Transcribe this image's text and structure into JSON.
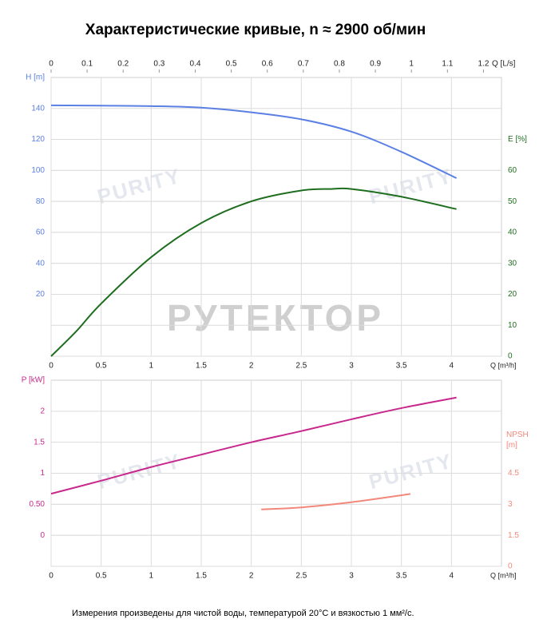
{
  "title": "Характеристические кривые, n ≈ 2900 об/мин",
  "footnote": "Измерения произведены для чистой воды, температурой 20°C и вязкостью 1 мм²/с.",
  "watermarks": [
    "PURITY",
    "РУТЕКТОР"
  ],
  "chart_data": [
    {
      "type": "line",
      "grid": true,
      "x_label": "Q [m³/h]",
      "xlim": [
        0,
        4.5
      ],
      "xticks": [
        0,
        0.5,
        1,
        1.5,
        2,
        2.5,
        3,
        3.5,
        4
      ],
      "x2_label": "Q [L/s]",
      "x2lim": [
        0,
        1.25
      ],
      "x2ticks": [
        0,
        0.1,
        0.2,
        0.3,
        0.4,
        0.5,
        0.6,
        0.7,
        0.8,
        0.9,
        1,
        1.1,
        1.2
      ],
      "y_label": "H [m]",
      "ylim": [
        -20,
        160
      ],
      "yticks": [
        20,
        40,
        60,
        80,
        100,
        120,
        140
      ],
      "y2_label": "E [%]",
      "y2lim": [
        0,
        90
      ],
      "y2ticks": [
        0,
        10,
        20,
        30,
        40,
        50,
        60
      ],
      "series": [
        {
          "name": "H",
          "color": "#5b80e4",
          "axis": "y",
          "x": [
            0,
            0.5,
            1,
            1.5,
            2,
            2.5,
            3,
            3.5,
            4.05
          ],
          "values": [
            142,
            141.8,
            141.5,
            140.5,
            137.5,
            133,
            125,
            112,
            95
          ]
        },
        {
          "name": "E",
          "color": "#1f6e1f",
          "axis": "y2",
          "x": [
            0,
            0.25,
            0.5,
            1,
            1.5,
            2,
            2.5,
            2.8,
            3,
            3.5,
            4.05
          ],
          "values": [
            0,
            8,
            17,
            32,
            43,
            50,
            53.5,
            54,
            54,
            51.5,
            47.5
          ]
        }
      ]
    },
    {
      "type": "line",
      "grid": true,
      "x_label": "Q [m³/h]",
      "xlim": [
        0,
        4.5
      ],
      "xticks": [
        0,
        0.5,
        1,
        1.5,
        2,
        2.5,
        3,
        3.5,
        4
      ],
      "y_label": "P [kW]",
      "ylim": [
        -0.5,
        2.5
      ],
      "yticks": [
        0,
        {
          "value": 0.5,
          "label": "0.50"
        },
        1,
        1.5,
        2
      ],
      "y2_label": "NPSH [m]",
      "y2lim": [
        0,
        9
      ],
      "y2ticks": [
        0,
        1.5,
        3,
        4.5
      ],
      "series": [
        {
          "name": "P",
          "color": "#c8288c",
          "axis": "y",
          "x": [
            0,
            0.5,
            1,
            1.5,
            2,
            2.5,
            3,
            3.5,
            4.05
          ],
          "values": [
            0.67,
            0.88,
            1.1,
            1.3,
            1.5,
            1.68,
            1.87,
            2.05,
            2.22
          ]
        },
        {
          "name": "NPSH",
          "color": "#f2887a",
          "axis": "y2",
          "x": [
            2.1,
            2.5,
            3,
            3.59
          ],
          "values": [
            2.75,
            2.85,
            3.1,
            3.5
          ]
        }
      ]
    }
  ]
}
